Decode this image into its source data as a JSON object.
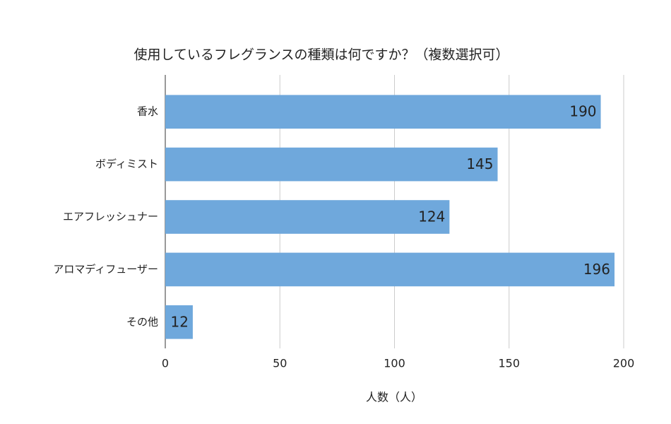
{
  "chart_data": {
    "type": "hbar",
    "title": "使用しているフレグランスの種類は何ですか？（複数選択可）",
    "x_label": "人数（人）",
    "categories": [
      "香水",
      "ボディミスト",
      "エアフレッシュナー",
      "アロマディフューザー",
      "その他"
    ],
    "values": [
      190,
      145,
      124,
      196,
      12
    ],
    "color": "#6fa8dc",
    "xlim": [
      0,
      200
    ],
    "xticks": [
      0,
      50,
      100,
      150,
      200
    ],
    "grid": true
  }
}
